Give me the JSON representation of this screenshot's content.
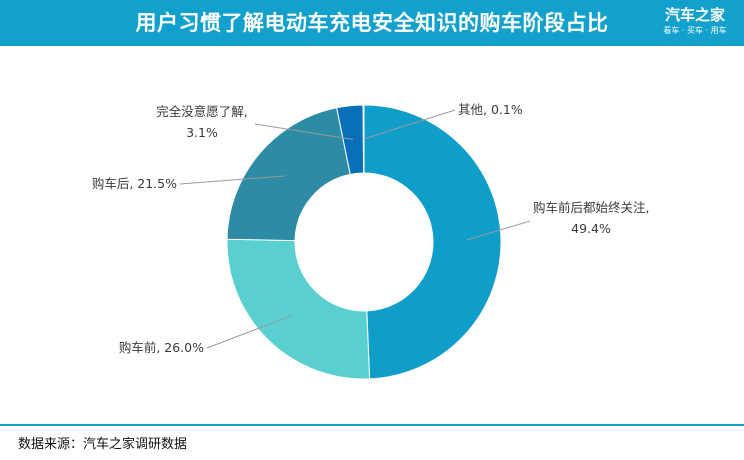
{
  "header": {
    "title": "用户习惯了解电动车充电安全知识的购车阶段占比",
    "brand_name": "汽车之家",
    "brand_slogan": "看车 · 买车 · 用车"
  },
  "footer": {
    "source": "数据来源：汽车之家调研数据"
  },
  "colors": {
    "header_bg": "#12a0cc",
    "slices": [
      "#0e9ec9",
      "#5acfcf",
      "#2d8ba6",
      "#0870b8",
      "#0f5f9a"
    ]
  },
  "chart_data": {
    "type": "pie",
    "donut": true,
    "title": "用户习惯了解电动车充电安全知识的购车阶段占比",
    "legend": "none",
    "slices": [
      {
        "name": "购车前后都始终关注",
        "value": 49.4,
        "label_line1": "购车前后都始终关注,",
        "label_line2": "49.4%"
      },
      {
        "name": "购车前",
        "value": 26.0,
        "label_line1": "购车前, 26.0%"
      },
      {
        "name": "购车后",
        "value": 21.5,
        "label_line1": "购车后, 21.5%"
      },
      {
        "name": "完全没意愿了解",
        "value": 3.1,
        "label_line1": "完全没意愿了解,",
        "label_line2": "3.1%"
      },
      {
        "name": "其他",
        "value": 0.1,
        "label_line1": "其他, 0.1%"
      }
    ]
  }
}
